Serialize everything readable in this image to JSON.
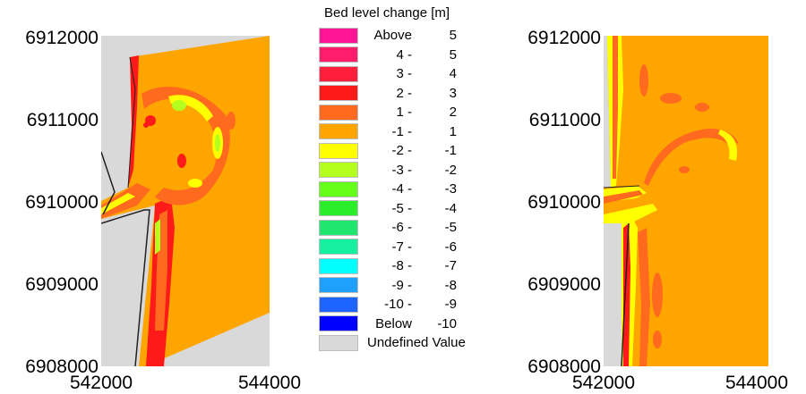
{
  "legend": {
    "title": "Bed level change [m]",
    "items": [
      {
        "lo": "Above",
        "hi": "5",
        "color": "#ff1493"
      },
      {
        "lo": "4 -",
        "hi": "5",
        "color": "#ff1c6a"
      },
      {
        "lo": "3 -",
        "hi": "4",
        "color": "#ff1e3c"
      },
      {
        "lo": "2 -",
        "hi": "3",
        "color": "#ff1a1a"
      },
      {
        "lo": "1 -",
        "hi": "2",
        "color": "#ff6a1e"
      },
      {
        "lo": "-1 -",
        "hi": "1",
        "color": "#ffa500"
      },
      {
        "lo": "-2 -",
        "hi": "-1",
        "color": "#ffff00"
      },
      {
        "lo": "-3 -",
        "hi": "-2",
        "color": "#b4ff1e"
      },
      {
        "lo": "-4 -",
        "hi": "-3",
        "color": "#66ff1a"
      },
      {
        "lo": "-5 -",
        "hi": "-4",
        "color": "#2aee2a"
      },
      {
        "lo": "-6 -",
        "hi": "-5",
        "color": "#1ee66e"
      },
      {
        "lo": "-7 -",
        "hi": "-6",
        "color": "#14f0a0"
      },
      {
        "lo": "-8 -",
        "hi": "-7",
        "color": "#00ffff"
      },
      {
        "lo": "-9 -",
        "hi": "-8",
        "color": "#1ea0ff"
      },
      {
        "lo": "-10 -",
        "hi": "-9",
        "color": "#1e64ff"
      },
      {
        "lo": "Below",
        "hi": "-10",
        "color": "#0000ff"
      }
    ],
    "undefined_label": "Undefined Value",
    "undefined_color": "#d9d9d9"
  },
  "left_map": {
    "y_ticks": [
      "6912000",
      "6911000",
      "6910000",
      "6909000",
      "6908000"
    ],
    "x_ticks": [
      "542000",
      "544000"
    ]
  },
  "right_map": {
    "y_ticks": [
      "6912000",
      "6911000",
      "6910000",
      "6909000",
      "6908000"
    ],
    "x_ticks": [
      "542000",
      "544000"
    ]
  }
}
